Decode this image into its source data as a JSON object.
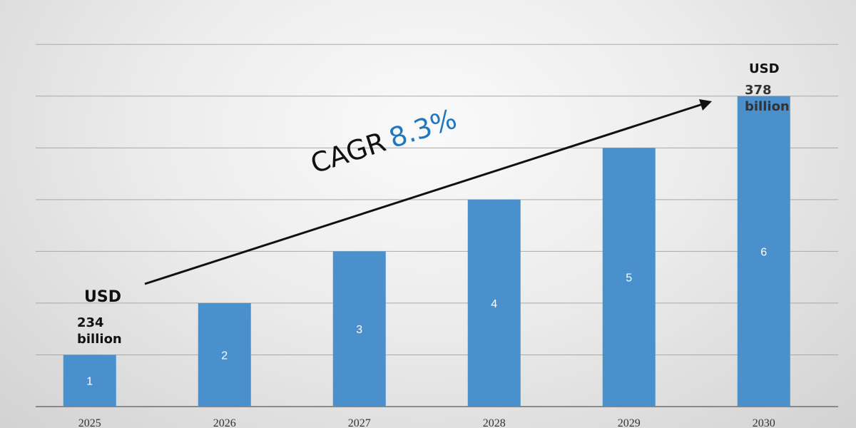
{
  "chart_data": {
    "type": "bar",
    "categories": [
      "2025",
      "2026",
      "2027",
      "2028",
      "2029",
      "2030"
    ],
    "values": [
      1,
      2,
      3,
      4,
      5,
      6
    ],
    "data_labels": [
      "1",
      "2",
      "3",
      "4",
      "5",
      "6"
    ],
    "ylim": [
      0,
      7.5
    ],
    "grid": true,
    "bar_color": "#4a90cd",
    "annotations": {
      "start_currency": "USD",
      "start_value": "234",
      "start_unit": "billion",
      "end_currency": "USD",
      "end_value": "378",
      "end_unit": "billion",
      "cagr_label": "CAGR",
      "cagr_value": "8.3%",
      "cagr_color": "#1f77c0"
    }
  }
}
